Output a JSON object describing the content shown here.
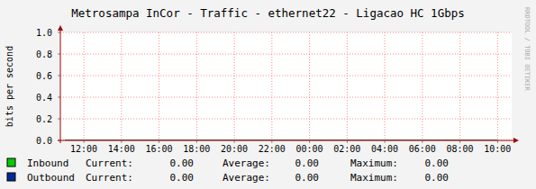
{
  "chart_data": {
    "type": "line",
    "title": "Metrosampa InCor - Traffic - ethernet22 - Ligacao HC 1Gbps",
    "y_label": "bits per second",
    "annotation": "RRDTOOL / TOBI OETIKER",
    "x": [
      11,
      12,
      13,
      14,
      15,
      16,
      17,
      18,
      19,
      20,
      21,
      22,
      23,
      24,
      25,
      26,
      27,
      28,
      29,
      30,
      31,
      32,
      33,
      34
    ],
    "xlim": [
      10.75,
      34.75
    ],
    "xticks": [
      {
        "value": 12,
        "label": "12:00"
      },
      {
        "value": 14,
        "label": "14:00"
      },
      {
        "value": 16,
        "label": "16:00"
      },
      {
        "value": 18,
        "label": "18:00"
      },
      {
        "value": 20,
        "label": "20:00"
      },
      {
        "value": 22,
        "label": "22:00"
      },
      {
        "value": 24,
        "label": "00:00"
      },
      {
        "value": 26,
        "label": "02:00"
      },
      {
        "value": 28,
        "label": "04:00"
      },
      {
        "value": 30,
        "label": "06:00"
      },
      {
        "value": 32,
        "label": "08:00"
      },
      {
        "value": 34,
        "label": "10:00"
      }
    ],
    "ylim": [
      0,
      1
    ],
    "yticks": [
      {
        "value": 0,
        "label": "0.0"
      },
      {
        "value": 0.2,
        "label": "0.2"
      },
      {
        "value": 0.4,
        "label": "0.4"
      },
      {
        "value": 0.6,
        "label": "0.6"
      },
      {
        "value": 0.8,
        "label": "0.8"
      },
      {
        "value": 1,
        "label": "1.0"
      }
    ],
    "grid": true,
    "legend": "bottom",
    "stat_names": [
      "Current:",
      "Average:",
      "Maximum:"
    ],
    "series": [
      {
        "name": "Inbound",
        "type": "area",
        "color": "#00cc00",
        "values": [
          0,
          0,
          0,
          0,
          0,
          0,
          0,
          0,
          0,
          0,
          0,
          0,
          0,
          0,
          0,
          0,
          0,
          0,
          0,
          0,
          0,
          0,
          0,
          0
        ],
        "stats": [
          0,
          0,
          0
        ],
        "stat_labels": [
          "0.00",
          "0.00",
          "0.00"
        ]
      },
      {
        "name": "Outbound",
        "type": "line",
        "color": "#002a97",
        "values": [
          0,
          0,
          0,
          0,
          0,
          0,
          0,
          0,
          0,
          0,
          0,
          0,
          0,
          0,
          0,
          0,
          0,
          0,
          0,
          0,
          0,
          0,
          0,
          0
        ],
        "stats": [
          0,
          0,
          0
        ],
        "stat_labels": [
          "0.00",
          "0.00",
          "0.00"
        ]
      }
    ]
  }
}
